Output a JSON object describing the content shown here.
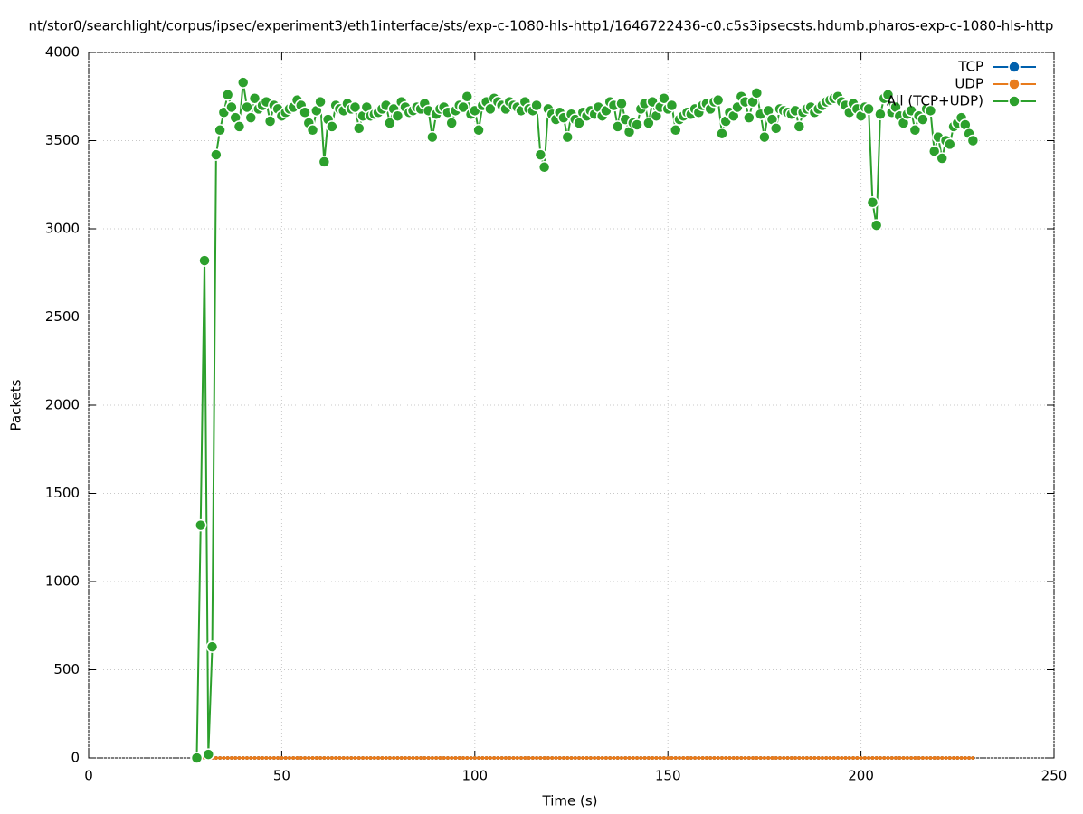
{
  "chart_data": {
    "type": "line",
    "title": "nt/stor0/searchlight/corpus/ipsec/experiment3/eth1interface/sts/exp-c-1080-hls-http1/1646722436-c0.c5s3ipsecsts.hdumb.pharos-exp-c-1080-hls-http",
    "x_label": "Time (s)",
    "y_label": "Packets",
    "xlim": [
      0,
      250
    ],
    "xticks": [
      0,
      50,
      100,
      150,
      200,
      250
    ],
    "ylim": [
      0,
      4000
    ],
    "yticks": [
      0,
      500,
      1000,
      1500,
      2000,
      2500,
      3000,
      3500,
      4000
    ],
    "grid": true,
    "legend": "top-right",
    "x": [
      28,
      29,
      30,
      31,
      32,
      33,
      34,
      35,
      36,
      37,
      38,
      39,
      40,
      41,
      42,
      43,
      44,
      45,
      46,
      47,
      48,
      49,
      50,
      51,
      52,
      53,
      54,
      55,
      56,
      57,
      58,
      59,
      60,
      61,
      62,
      63,
      64,
      65,
      66,
      67,
      68,
      69,
      70,
      71,
      72,
      73,
      74,
      75,
      76,
      77,
      78,
      79,
      80,
      81,
      82,
      83,
      84,
      85,
      86,
      87,
      88,
      89,
      90,
      91,
      92,
      93,
      94,
      95,
      96,
      97,
      98,
      99,
      100,
      101,
      102,
      103,
      104,
      105,
      106,
      107,
      108,
      109,
      110,
      111,
      112,
      113,
      114,
      115,
      116,
      117,
      118,
      119,
      120,
      121,
      122,
      123,
      124,
      125,
      126,
      127,
      128,
      129,
      130,
      131,
      132,
      133,
      134,
      135,
      136,
      137,
      138,
      139,
      140,
      141,
      142,
      143,
      144,
      145,
      146,
      147,
      148,
      149,
      150,
      151,
      152,
      153,
      154,
      155,
      156,
      157,
      158,
      159,
      160,
      161,
      162,
      163,
      164,
      165,
      166,
      167,
      168,
      169,
      170,
      171,
      172,
      173,
      174,
      175,
      176,
      177,
      178,
      179,
      180,
      181,
      182,
      183,
      184,
      185,
      186,
      187,
      188,
      189,
      190,
      191,
      192,
      193,
      194,
      195,
      196,
      197,
      198,
      199,
      200,
      201,
      202,
      203,
      204,
      205,
      206,
      207,
      208,
      209,
      210,
      211,
      212,
      213,
      214,
      215,
      216,
      217,
      218,
      219,
      220,
      221,
      222,
      223,
      224,
      225,
      226,
      227,
      228,
      229
    ],
    "series": [
      {
        "name": "TCP",
        "color": "#0060ad",
        "values": [
          0,
          0,
          0,
          0,
          0,
          0,
          0,
          0,
          0,
          0,
          0,
          0,
          0,
          0,
          0,
          0,
          0,
          0,
          0,
          0,
          0,
          0,
          0,
          0,
          0,
          0,
          0,
          0,
          0,
          0,
          0,
          0,
          0,
          0,
          0,
          0,
          0,
          0,
          0,
          0,
          0,
          0,
          0,
          0,
          0,
          0,
          0,
          0,
          0,
          0,
          0,
          0,
          0,
          0,
          0,
          0,
          0,
          0,
          0,
          0,
          0,
          0,
          0,
          0,
          0,
          0,
          0,
          0,
          0,
          0,
          0,
          0,
          0,
          0,
          0,
          0,
          0,
          0,
          0,
          0,
          0,
          0,
          0,
          0,
          0,
          0,
          0,
          0,
          0,
          0,
          0,
          0,
          0,
          0,
          0,
          0,
          0,
          0,
          0,
          0,
          0,
          0,
          0,
          0,
          0,
          0,
          0,
          0,
          0,
          0,
          0,
          0,
          0,
          0,
          0,
          0,
          0,
          0,
          0,
          0,
          0,
          0,
          0,
          0,
          0,
          0,
          0,
          0,
          0,
          0,
          0,
          0,
          0,
          0,
          0,
          0,
          0,
          0,
          0,
          0,
          0,
          0,
          0,
          0,
          0,
          0,
          0,
          0,
          0,
          0,
          0,
          0,
          0,
          0,
          0,
          0,
          0,
          0,
          0,
          0,
          0,
          0,
          0,
          0,
          0,
          0,
          0,
          0,
          0,
          0,
          0,
          0,
          0,
          0,
          0,
          0,
          0,
          0,
          0,
          0,
          0,
          0,
          0,
          0,
          0,
          0,
          0,
          0,
          0,
          0,
          0,
          0,
          0,
          0,
          0,
          0,
          0,
          0,
          0,
          0,
          0,
          0
        ]
      },
      {
        "name": "UDP",
        "color": "#e87b1c",
        "values": [
          0,
          0,
          0,
          0,
          0,
          0,
          0,
          0,
          0,
          0,
          0,
          0,
          0,
          0,
          0,
          0,
          0,
          0,
          0,
          0,
          0,
          0,
          0,
          0,
          0,
          0,
          0,
          0,
          0,
          0,
          0,
          0,
          0,
          0,
          0,
          0,
          0,
          0,
          0,
          0,
          0,
          0,
          0,
          0,
          0,
          0,
          0,
          0,
          0,
          0,
          0,
          0,
          0,
          0,
          0,
          0,
          0,
          0,
          0,
          0,
          0,
          0,
          0,
          0,
          0,
          0,
          0,
          0,
          0,
          0,
          0,
          0,
          0,
          0,
          0,
          0,
          0,
          0,
          0,
          0,
          0,
          0,
          0,
          0,
          0,
          0,
          0,
          0,
          0,
          0,
          0,
          0,
          0,
          0,
          0,
          0,
          0,
          0,
          0,
          0,
          0,
          0,
          0,
          0,
          0,
          0,
          0,
          0,
          0,
          0,
          0,
          0,
          0,
          0,
          0,
          0,
          0,
          0,
          0,
          0,
          0,
          0,
          0,
          0,
          0,
          0,
          0,
          0,
          0,
          0,
          0,
          0,
          0,
          0,
          0,
          0,
          0,
          0,
          0,
          0,
          0,
          0,
          0,
          0,
          0,
          0,
          0,
          0,
          0,
          0,
          0,
          0,
          0,
          0,
          0,
          0,
          0,
          0,
          0,
          0,
          0,
          0,
          0,
          0,
          0,
          0,
          0,
          0,
          0,
          0,
          0,
          0,
          0,
          0,
          0,
          0,
          0,
          0,
          0,
          0,
          0,
          0,
          0,
          0,
          0,
          0,
          0,
          0,
          0,
          0,
          0,
          0,
          0,
          0,
          0,
          0,
          0,
          0,
          0,
          0,
          0,
          0
        ]
      },
      {
        "name": "All (TCP+UDP)",
        "color": "#2ca02c",
        "values": [
          0,
          1320,
          2820,
          20,
          630,
          3420,
          3560,
          3660,
          3760,
          3690,
          3630,
          3580,
          3830,
          3690,
          3630,
          3740,
          3680,
          3700,
          3720,
          3610,
          3700,
          3680,
          3640,
          3660,
          3680,
          3690,
          3730,
          3700,
          3660,
          3600,
          3560,
          3670,
          3720,
          3380,
          3620,
          3580,
          3700,
          3680,
          3670,
          3710,
          3680,
          3690,
          3570,
          3640,
          3690,
          3640,
          3650,
          3660,
          3680,
          3700,
          3600,
          3680,
          3640,
          3720,
          3690,
          3660,
          3670,
          3690,
          3680,
          3710,
          3670,
          3520,
          3650,
          3680,
          3690,
          3660,
          3600,
          3670,
          3700,
          3690,
          3750,
          3650,
          3670,
          3560,
          3700,
          3720,
          3680,
          3740,
          3720,
          3700,
          3680,
          3720,
          3700,
          3690,
          3670,
          3720,
          3680,
          3670,
          3700,
          3420,
          3350,
          3680,
          3650,
          3620,
          3660,
          3630,
          3520,
          3650,
          3620,
          3600,
          3660,
          3640,
          3670,
          3650,
          3690,
          3640,
          3670,
          3720,
          3700,
          3580,
          3710,
          3620,
          3550,
          3600,
          3590,
          3680,
          3710,
          3600,
          3720,
          3640,
          3690,
          3740,
          3680,
          3700,
          3560,
          3620,
          3640,
          3660,
          3650,
          3680,
          3660,
          3700,
          3710,
          3680,
          3720,
          3730,
          3540,
          3610,
          3660,
          3640,
          3690,
          3750,
          3720,
          3630,
          3720,
          3770,
          3650,
          3520,
          3670,
          3620,
          3570,
          3680,
          3670,
          3660,
          3650,
          3670,
          3580,
          3660,
          3680,
          3690,
          3660,
          3680,
          3700,
          3720,
          3730,
          3740,
          3750,
          3720,
          3700,
          3660,
          3710,
          3680,
          3640,
          3690,
          3680,
          3150,
          3020,
          3650,
          3740,
          3760,
          3660,
          3690,
          3640,
          3600,
          3650,
          3670,
          3560,
          3640,
          3620,
          3680,
          3670,
          3440,
          3520,
          3400,
          3500,
          3480,
          3580,
          3600,
          3630,
          3590,
          3540,
          3500
        ]
      }
    ]
  }
}
